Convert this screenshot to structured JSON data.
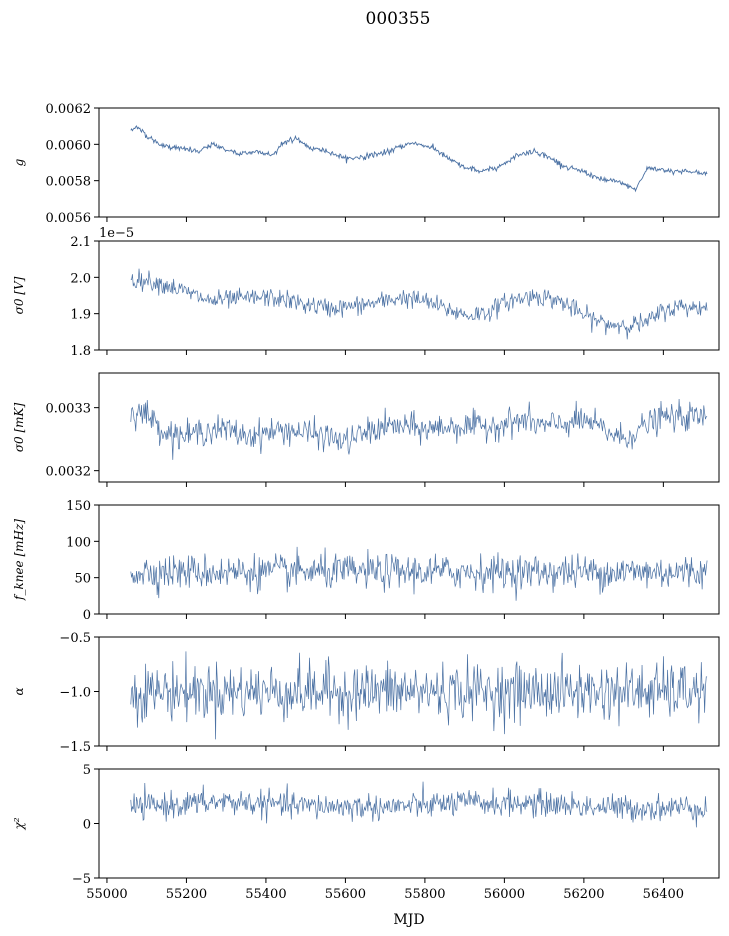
{
  "figure": {
    "title": "000355",
    "xlabel": "MJD"
  },
  "x_ticks": [
    "55000",
    "55200",
    "55400",
    "55600",
    "55800",
    "56000",
    "56200",
    "56400"
  ],
  "colors": {
    "series": "#4c72a4",
    "axes": "#000000",
    "background": "#ffffff"
  },
  "chart_data": [
    {
      "type": "line",
      "ylabel": "g",
      "ylim": [
        0.0056,
        0.0062
      ],
      "y_ticks": [
        "0.0056",
        "0.0058",
        "0.0060",
        "0.0062"
      ],
      "offset_text": "",
      "xlim": [
        54980,
        56540
      ],
      "x_range": [
        55060,
        56510
      ],
      "anchors": [
        [
          55060,
          0.00607
        ],
        [
          55075,
          0.0061
        ],
        [
          55110,
          0.00603
        ],
        [
          55140,
          0.00599
        ],
        [
          55180,
          0.00598
        ],
        [
          55230,
          0.00596
        ],
        [
          55270,
          0.006
        ],
        [
          55300,
          0.00597
        ],
        [
          55330,
          0.00595
        ],
        [
          55380,
          0.00596
        ],
        [
          55420,
          0.00594
        ],
        [
          55440,
          0.00601
        ],
        [
          55480,
          0.00603
        ],
        [
          55510,
          0.00598
        ],
        [
          55560,
          0.00596
        ],
        [
          55600,
          0.00592
        ],
        [
          55640,
          0.00593
        ],
        [
          55690,
          0.00595
        ],
        [
          55720,
          0.00597
        ],
        [
          55770,
          0.00601
        ],
        [
          55820,
          0.00598
        ],
        [
          55860,
          0.00592
        ],
        [
          55900,
          0.00587
        ],
        [
          55950,
          0.00585
        ],
        [
          55990,
          0.00588
        ],
        [
          56040,
          0.00595
        ],
        [
          56080,
          0.00596
        ],
        [
          56120,
          0.00592
        ],
        [
          56160,
          0.00587
        ],
        [
          56200,
          0.00585
        ],
        [
          56240,
          0.00581
        ],
        [
          56290,
          0.00579
        ],
        [
          56330,
          0.00575
        ],
        [
          56360,
          0.00587
        ],
        [
          56400,
          0.00586
        ],
        [
          56450,
          0.00585
        ],
        [
          56510,
          0.00584
        ]
      ],
      "noise": 1.5e-05
    },
    {
      "type": "line",
      "ylabel": "σ0 [V]",
      "ylim": [
        1.8e-05,
        2.1e-05
      ],
      "y_ticks": [
        "1.8",
        "1.9",
        "2.0",
        "2.1"
      ],
      "offset_text": "1e−5",
      "xlim": [
        54980,
        56540
      ],
      "x_range": [
        55060,
        56510
      ],
      "anchors": [
        [
          55060,
          1.995e-05
        ],
        [
          55110,
          1.99e-05
        ],
        [
          55160,
          1.975e-05
        ],
        [
          55210,
          1.955e-05
        ],
        [
          55260,
          1.935e-05
        ],
        [
          55320,
          1.94e-05
        ],
        [
          55400,
          1.945e-05
        ],
        [
          55440,
          1.94e-05
        ],
        [
          55500,
          1.925e-05
        ],
        [
          55560,
          1.915e-05
        ],
        [
          55620,
          1.92e-05
        ],
        [
          55680,
          1.93e-05
        ],
        [
          55740,
          1.945e-05
        ],
        [
          55800,
          1.935e-05
        ],
        [
          55860,
          1.91e-05
        ],
        [
          55910,
          1.895e-05
        ],
        [
          55960,
          1.905e-05
        ],
        [
          56010,
          1.935e-05
        ],
        [
          56080,
          1.95e-05
        ],
        [
          56140,
          1.935e-05
        ],
        [
          56200,
          1.895e-05
        ],
        [
          56260,
          1.87e-05
        ],
        [
          56320,
          1.87e-05
        ],
        [
          56360,
          1.875e-05
        ],
        [
          56400,
          1.91e-05
        ],
        [
          56450,
          1.92e-05
        ],
        [
          56510,
          1.915e-05
        ]
      ],
      "noise": 1.3e-07
    },
    {
      "type": "line",
      "ylabel": "σ0 [mK]",
      "ylim": [
        0.003182,
        0.003355
      ],
      "y_ticks": [
        "0.0032",
        "0.0033"
      ],
      "y_tick_values": [
        0.0032,
        0.0033
      ],
      "offset_text": "",
      "xlim": [
        54980,
        56540
      ],
      "x_range": [
        55060,
        56510
      ],
      "anchors": [
        [
          55060,
          0.003295
        ],
        [
          55100,
          0.00329
        ],
        [
          55150,
          0.00326
        ],
        [
          55200,
          0.003255
        ],
        [
          55250,
          0.003265
        ],
        [
          55300,
          0.003265
        ],
        [
          55350,
          0.003255
        ],
        [
          55400,
          0.00326
        ],
        [
          55450,
          0.003265
        ],
        [
          55500,
          0.00326
        ],
        [
          55550,
          0.003255
        ],
        [
          55600,
          0.003245
        ],
        [
          55650,
          0.00326
        ],
        [
          55700,
          0.00327
        ],
        [
          55750,
          0.00327
        ],
        [
          55800,
          0.003265
        ],
        [
          55850,
          0.00327
        ],
        [
          55900,
          0.00327
        ],
        [
          55950,
          0.00327
        ],
        [
          56000,
          0.003275
        ],
        [
          56050,
          0.00328
        ],
        [
          56100,
          0.00327
        ],
        [
          56150,
          0.003275
        ],
        [
          56200,
          0.00328
        ],
        [
          56250,
          0.003265
        ],
        [
          56300,
          0.00325
        ],
        [
          56350,
          0.00327
        ],
        [
          56400,
          0.003285
        ],
        [
          56450,
          0.003285
        ],
        [
          56510,
          0.003285
        ]
      ],
      "noise": 1.1e-05
    },
    {
      "type": "line",
      "ylabel": "f_knee [mHz]",
      "ylim": [
        0,
        150
      ],
      "y_ticks": [
        "0",
        "50",
        "100",
        "150"
      ],
      "offset_text": "",
      "xlim": [
        54980,
        56540
      ],
      "x_range": [
        55060,
        56510
      ],
      "anchors": [
        [
          55060,
          58
        ],
        [
          56510,
          58
        ]
      ],
      "noise": 12
    },
    {
      "type": "line",
      "ylabel": "α",
      "ylim": [
        -1.5,
        -0.5
      ],
      "y_ticks": [
        "−1.5",
        "−1.0",
        "−0.5"
      ],
      "offset_text": "",
      "xlim": [
        54980,
        56540
      ],
      "x_range": [
        55060,
        56510
      ],
      "anchors": [
        [
          55060,
          -1.0
        ],
        [
          56510,
          -1.0
        ]
      ],
      "noise": 0.13
    },
    {
      "type": "line",
      "ylabel": "χ²",
      "ylim": [
        -5,
        5
      ],
      "y_ticks": [
        "−5",
        "0",
        "5"
      ],
      "offset_text": "",
      "xlim": [
        54980,
        56540
      ],
      "x_range": [
        55060,
        56510
      ],
      "anchors": [
        [
          55060,
          1.5
        ],
        [
          55300,
          2.0
        ],
        [
          55500,
          1.6
        ],
        [
          55700,
          1.5
        ],
        [
          55900,
          1.9
        ],
        [
          56100,
          1.8
        ],
        [
          56300,
          1.4
        ],
        [
          56510,
          1.5
        ]
      ],
      "noise": 0.6
    }
  ]
}
